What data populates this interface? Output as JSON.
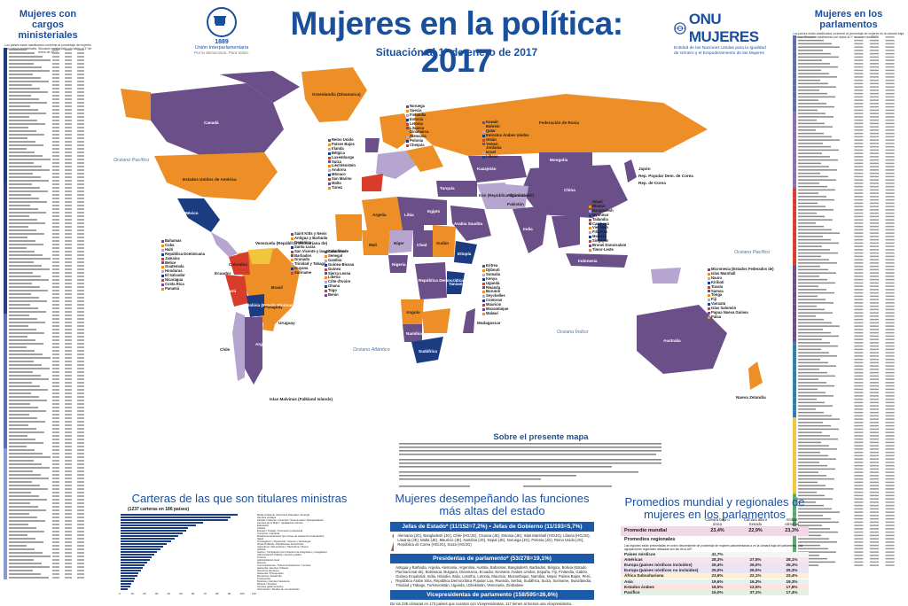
{
  "header": {
    "title": "Mujeres en la política: 2017",
    "subtitle": "Situación al 1º de enero de 2017",
    "ipu_year": "1889",
    "ipu_name": "Unión Interparlamentaria",
    "ipu_tagline": "Por la democracia. Para todos.",
    "unw_brand": "ONU MUJERES",
    "unw_text": "Entidad de las Naciones Unidas para la Igualdad de Género y el Empoderamiento de las Mujeres"
  },
  "left_panel": {
    "title": "Mujeres con cargos ministeriales",
    "note": "Los países están clasificados conforme al porcentaje de mujeres con cargos ministeriales. Situación establecida con datos al 1º de enero de 2017"
  },
  "right_panel": {
    "title": "Mujeres en los parlamentos",
    "note": "Los países están clasificados conforme al porcentaje de mujeres en la cámara baja o única. Situación establecida con datos al 1º de enero de 2017"
  },
  "map": {
    "oceans": [
      "Océano Pacífico",
      "Océano Atlántico",
      "Océano Índico",
      "Océano Pacífico"
    ],
    "countries": {
      "canada": "Canadá",
      "usa": "Estados Unidos de América",
      "mexico": "México",
      "brazil": "Brasil",
      "argentina": "Argentina",
      "russia": "Federación de Rusia",
      "china": "China",
      "india": "India",
      "australia": "Australia",
      "greenland": "Groenlandia (Dinamarca)",
      "mongolia": "Mongolia",
      "kazakhstan": "Kazajstán",
      "japan": "Japón",
      "rep_korea": "Rep. de Corea",
      "dprk": "Rep. Popular Dem. de Corea",
      "nz": "Nueva Zelandia",
      "chile": "Chile",
      "peru": "Perú",
      "bolivia": "Bolivia (Estado Plurinacional de)",
      "colombia": "Colombia",
      "venezuela": "Venezuela (República Bolivariana de)",
      "algeria": "Argelia",
      "libya": "Libia",
      "egypt": "Egipto",
      "sudan": "Sudán",
      "nigeria": "Nigeria",
      "drc": "República Democrática del Congo",
      "south_africa": "Sudáfrica",
      "saudi": "Arabia Saudita",
      "iran": "Irán (República Islámica del)",
      "indonesia": "Indonesia",
      "mali": "Malí",
      "niger": "Níger",
      "chad": "Chad",
      "ethiopia": "Etiopía",
      "angola": "Angola",
      "namibia": "Namibia",
      "madagascar": "Madagascar",
      "tanzania": "Tanzanía",
      "pakistan": "Pakistán",
      "afghanistan": "Afganistán",
      "turkey": "Turquía",
      "uruguay": "Uruguay",
      "paraguay": "Paraguay",
      "ecuador": "Ecuador",
      "malvinas": "Islas Malvinas (Falkland Islands)"
    },
    "cluster_europe": [
      "Reino Unido",
      "Países Bajos",
      "Irlanda",
      "Bélgica",
      "Luxemburgo",
      "Suiza",
      "Liechtenstein",
      "Andorra",
      "Mónaco",
      "San Marino",
      "Malta",
      "Túnez"
    ],
    "cluster_nordic": [
      "Noruega",
      "Suecia",
      "Finlandia",
      "Estonia",
      "Letonia",
      "Lituania",
      "Dinamarca",
      "Alemania",
      "Polonia",
      "Chequia"
    ],
    "cluster_caribbean": [
      "Bahamas",
      "Cuba",
      "Haití",
      "República Dominicana",
      "Jamaica",
      "Belice",
      "Guatemala",
      "Honduras",
      "El Salvador",
      "Nicaragua",
      "Costa Rica",
      "Panamá"
    ],
    "cluster_antilles": [
      "Saint Kitts y Nevis",
      "Antigua y Barbuda",
      "Dominica",
      "Santa Lucía",
      "San Vicente y las Granadinas",
      "Barbados",
      "Granada",
      "Trinidad y Tabago",
      "Guyana",
      "Suriname"
    ],
    "cluster_westafrica": [
      "Cabo Verde",
      "Senegal",
      "Gambia",
      "Guinea-Bissau",
      "Guinea",
      "Sierra Leona",
      "Liberia",
      "Côte d'Ivoire",
      "Ghana",
      "Togo",
      "Benin"
    ],
    "cluster_eastafrica": [
      "Eritrea",
      "Djibouti",
      "Somalia",
      "Kenya",
      "Uganda",
      "Rwanda",
      "Burundi",
      "Seychelles",
      "Comoras",
      "Mauricio",
      "Mozambique",
      "Malawi"
    ],
    "cluster_gulf": [
      "Kuwait",
      "Bahrein",
      "Qatar",
      "Emiratos Árabes Unidos",
      "Omán",
      "Yemen",
      "Jordania",
      "Israel",
      "Líbano"
    ],
    "cluster_asia": [
      "Nepal",
      "Bhután",
      "Bangladesh",
      "Myanmar",
      "Tailandia",
      "Camboya",
      "Viet Nam",
      "Filipinas",
      "Malasia",
      "Singapur",
      "Brunei Darussalam",
      "Timor-Leste"
    ],
    "cluster_pacific": [
      "Micronesia (Estados Federados de)",
      "Islas Marshall",
      "Nauru",
      "Kiribati",
      "Tuvalu",
      "Samoa",
      "Tonga",
      "Fiji",
      "Vanuatu",
      "Islas Salomón",
      "Papua Nueva Guinea",
      "Palau"
    ]
  },
  "about": {
    "title": "Sobre el presente mapa"
  },
  "ministers_section": {
    "title": "Carteras de las que son titulares ministras",
    "subtitle": "(1237 carteras en 186 países)",
    "items": [
      {
        "label": "Medio Ambiente / Recursos Naturales / Energía",
        "value": 97
      },
      {
        "label": "Asuntos sociales",
        "value": 91
      },
      {
        "label": "Familia / Infancia / Juventud / Tercera edad / Discapacitados",
        "value": 89
      },
      {
        "label": "Asuntos de la Mujer / Igualdad de Género",
        "value": 68
      },
      {
        "label": "Educación",
        "value": 62
      },
      {
        "label": "Cultura",
        "value": 56
      },
      {
        "label": "Empleo / Trabajo / Formación profesional",
        "value": 54
      },
      {
        "label": "Comercio / Industria",
        "value": 51
      },
      {
        "label": "Relaciones Exteriores (se incluye de asistencia al desarrollo)",
        "value": 48
      },
      {
        "label": "Salud",
        "value": 45
      },
      {
        "label": "Investigación y Desarrollo / Ciencia y Tecnología",
        "value": 42
      },
      {
        "label": "Obras Públicas / Planificación del territorio",
        "value": 38
      },
      {
        "label": "Agricultura / Alimentación / Silvicultura / Pesca",
        "value": 35
      },
      {
        "label": "Justicia",
        "value": 33
      },
      {
        "label": "Interior / Inmigración (con inclusión de integración y refugiados)",
        "value": 30
      },
      {
        "label": "Administración Pública / Servicio público",
        "value": 28
      },
      {
        "label": "Turismo",
        "value": 26
      },
      {
        "label": "Administración local",
        "value": 24
      },
      {
        "label": "Deporte",
        "value": 22
      },
      {
        "label": "Comunicaciones / Telecomunicaciones / Correos",
        "value": 20
      },
      {
        "label": "Hacienda / Asuntos Urbanos",
        "value": 18
      },
      {
        "label": "Derechos Humanos",
        "value": 17
      },
      {
        "label": "Hacienda / Presupuesto",
        "value": 15
      },
      {
        "label": "Economía / Desarrollo",
        "value": 14
      },
      {
        "label": "Transportes",
        "value": 12
      },
      {
        "label": "Defensa y Asuntos Veteranos",
        "value": 11
      },
      {
        "label": "Minería / Petróleo",
        "value": 9
      },
      {
        "label": "Asuntos parlamentarios",
        "value": 8
      },
      {
        "label": "Información / Medios de comunicación",
        "value": 6
      }
    ],
    "axis_ticks": [
      "0",
      "10",
      "20",
      "30",
      "40",
      "50",
      "60",
      "70",
      "80",
      "90",
      "100",
      "110"
    ]
  },
  "positions_section": {
    "title": "Mujeres desempeñando las funciones más altas del estado",
    "heads_of_state": "Jefas de Estado* (11/152=7,2%)",
    "heads_of_gov": "Jefas de Gobierno (11/193=5,7%)",
    "heads_text": "Alemania (JG), Bangladesh (JG), Chile (HG/JG), Croacia (JE), Estonia (JE), Islas Marshall (HG/JG), Liberia (HG/JG), Lituania (JE), Malta (JE), Mauricio (JE), Namibia (JG), Nepal (JE), Noruega (JG), Polonia (JG), Reino Unido (JG), República de Corea (HG/JG), Suiza (HG/JG)",
    "speakers_head": "Presidentas de parlamento* (53/278=19,1%)",
    "speakers_text": "Antigua y Barbuda, Argelia, Alemania, Argentina, Austria, Bahamas, Bangladesh, Barbados, Bélgica, Bolivia (Estado Plurinacional de), Botswana, Bulgaria, Dinamarca, Ecuador, Emiratos Árabes Unidos, España, Fiji, Finlandia, Gabón, Guinea Ecuatorial, India, Islandia, Italia, Lesotho, Letonia, Mauricio, Mozambique, Namibia, Nepal, Países Bajos, Perú, República Árabe Siria, República Democrática Popular Lao, Rwanda, Serbia, Sudáfrica, Suiza, Suriname, Swazilandia, Trinidad y Tabago, Turkmenistán, Uganda, Uzbekistán, Venezuela, Zimbabwe",
    "vice_head": "Vicepresidentas de parlamento (158/595=26,6%)",
    "vice_text": "De los 235 cámaras en 173 países que cuentan con Vicepresidentas, 117 tienen al menos una vicepresidenta."
  },
  "averages_section": {
    "title": "Promedios mundial y regionales de mujeres en los parlamentos",
    "col_lower": "Cámara baja o única",
    "col_upper": "Cámara alta o Senado",
    "col_both": "Ambas cámaras combinadas",
    "world_label": "Promedio mundial",
    "world": [
      "23,4%",
      "22,9%",
      "23,3%"
    ],
    "regional_label": "Promedios regionales",
    "regional_note": "Las regiones están presentadas en orden descendente de porcentaje de mujeres parlamentarias a en la cámara baja del parlamento. Las agrupaciones regionales utilizadas son las de la UIP.",
    "rows": [
      {
        "region": "Países nórdicos",
        "lower": "41,7%",
        "upper": "",
        "both": ""
      },
      {
        "region": "Américas",
        "lower": "28,3%",
        "upper": "27,5%",
        "both": "28,1%"
      },
      {
        "region": "Europa (países nórdicos incluidos)",
        "lower": "26,4%",
        "upper": "26,0%",
        "both": "26,3%"
      },
      {
        "region": "Europa (países nórdicos no incluidos)",
        "lower": "25,0%",
        "upper": "26,0%",
        "both": "25,3%"
      },
      {
        "region": "África Subsahariana",
        "lower": "23,6%",
        "upper": "22,1%",
        "both": "23,4%"
      },
      {
        "region": "Asia",
        "lower": "19,6%",
        "upper": "16,3%",
        "both": "19,3%"
      },
      {
        "region": "Estados árabes",
        "lower": "18,9%",
        "upper": "12,5%",
        "both": "17,8%"
      },
      {
        "region": "Pacífico",
        "lower": "15,0%",
        "upper": "37,1%",
        "both": "17,4%"
      }
    ]
  },
  "colors": {
    "title_blue": "#1a4f9c",
    "land_purple": "#6a4f88",
    "land_orange": "#ee8e26",
    "land_lavender": "#b6a6cf",
    "land_navy": "#1c3c82",
    "land_darkblue": "#2a3f80",
    "land_red": "#d83d2c",
    "land_yellow": "#f1c63c",
    "land_gray": "#bfbfbf",
    "ocean": "#ffffff"
  }
}
